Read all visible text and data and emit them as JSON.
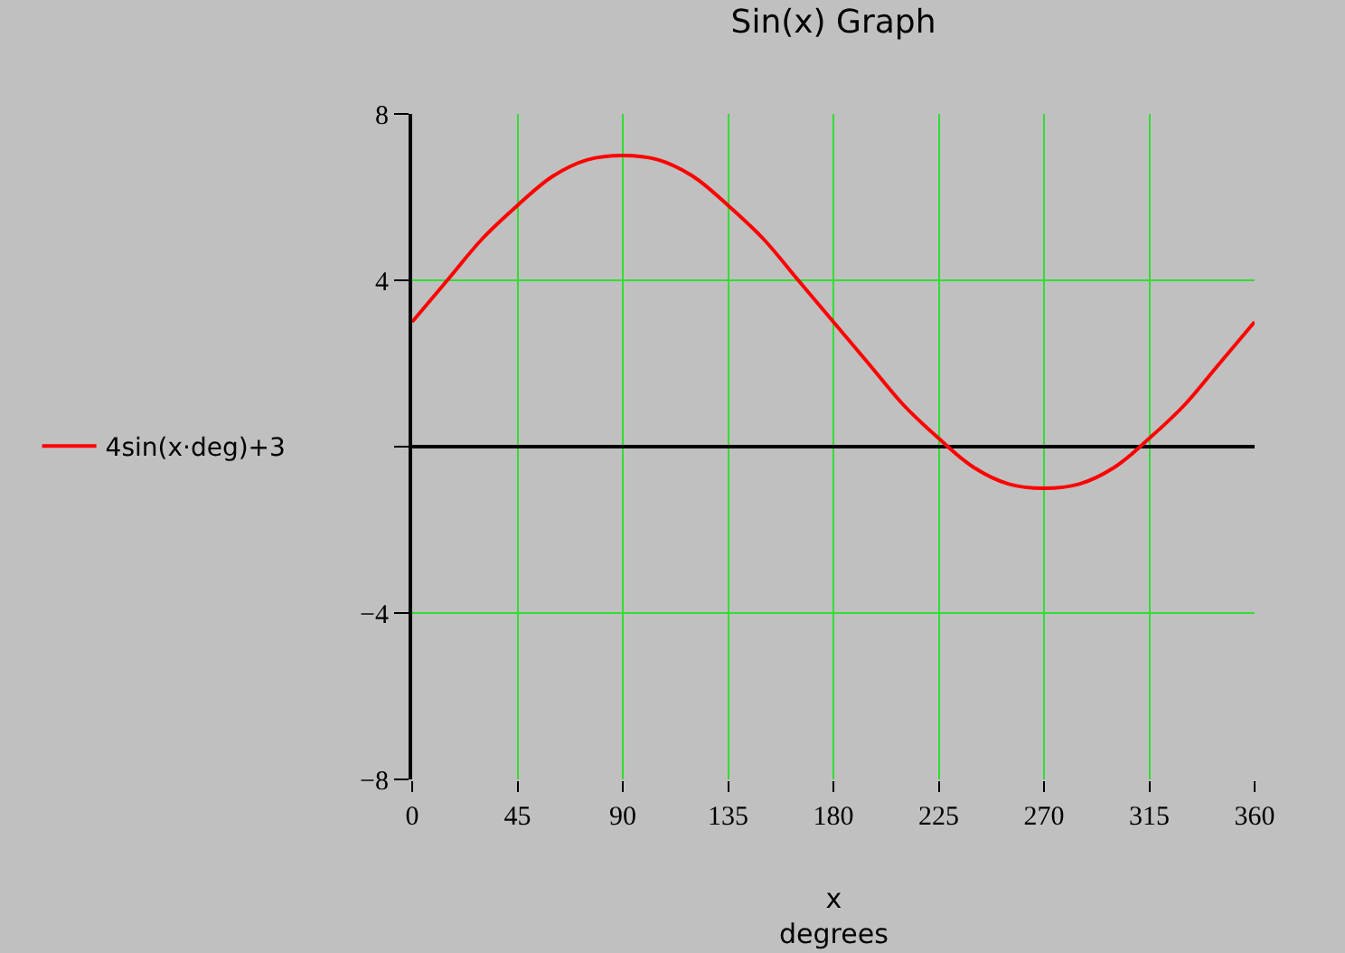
{
  "chart_data": {
    "type": "line",
    "title": "Sin(x) Graph",
    "xlabel": "x\ndegrees",
    "x": [
      0,
      15,
      30,
      45,
      60,
      75,
      90,
      105,
      120,
      135,
      150,
      165,
      180,
      195,
      210,
      225,
      240,
      255,
      270,
      285,
      300,
      315,
      330,
      345,
      360
    ],
    "series": [
      {
        "name": "4sin(x·deg)+3",
        "color": "#ff0000",
        "values": [
          3,
          4,
          5,
          5.8,
          6.5,
          6.9,
          7,
          6.9,
          6.5,
          5.8,
          5,
          4,
          3,
          2,
          1,
          0.2,
          -0.5,
          -0.9,
          -1,
          -0.9,
          -0.5,
          0.2,
          1,
          2,
          3
        ]
      }
    ],
    "xlim": [
      0,
      360
    ],
    "xticks": [
      0,
      45,
      90,
      135,
      180,
      225,
      270,
      315,
      360
    ],
    "ylim": [
      -8,
      8
    ],
    "yticks": [
      -8,
      -4,
      {
        "value": 0,
        "label": null
      },
      4,
      8
    ],
    "grid": true,
    "legend": "left",
    "marker": "none",
    "line_style": "solid"
  }
}
